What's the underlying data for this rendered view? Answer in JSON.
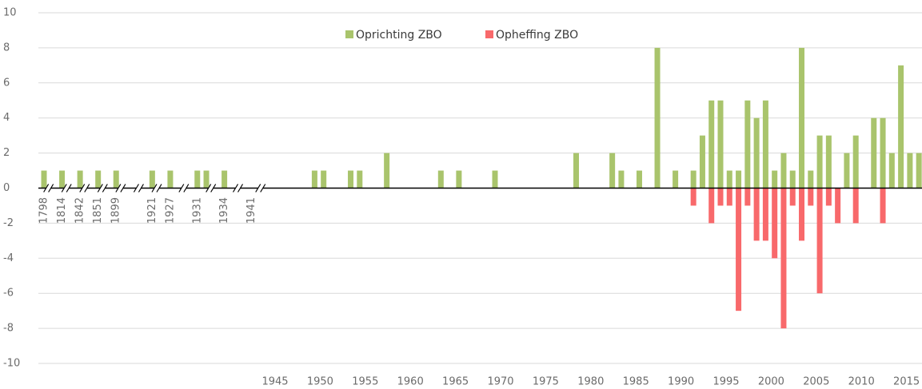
{
  "chart_data": {
    "type": "bar",
    "categories": [
      "1798",
      null,
      "1814",
      null,
      "1842",
      null,
      "1851",
      null,
      "1899",
      null,
      null,
      null,
      "1921",
      null,
      "1927",
      null,
      null,
      "1931",
      null,
      null,
      "1934",
      null,
      null,
      "1941",
      null,
      "1945",
      null,
      null,
      null,
      null,
      "1950",
      null,
      null,
      null,
      null,
      "1955",
      null,
      null,
      null,
      null,
      "1960",
      null,
      null,
      null,
      null,
      "1965",
      null,
      null,
      null,
      null,
      "1970",
      null,
      null,
      null,
      null,
      "1975",
      null,
      null,
      null,
      null,
      "1980",
      null,
      null,
      null,
      null,
      "1985",
      null,
      null,
      null,
      null,
      "1990",
      null,
      null,
      null,
      null,
      "1995",
      null,
      null,
      null,
      null,
      "2000",
      null,
      null,
      null,
      null,
      "2005",
      null,
      null,
      null,
      null,
      "2010",
      null,
      null,
      null,
      null,
      "2015",
      null,
      null
    ],
    "series": [
      {
        "name": "Oprichting ZBO",
        "color": "#a9c46c",
        "values": [
          1,
          null,
          1,
          null,
          1,
          null,
          1,
          null,
          1,
          null,
          null,
          null,
          1,
          null,
          1,
          null,
          null,
          1,
          1,
          null,
          1,
          null,
          null,
          null,
          null,
          null,
          null,
          null,
          null,
          null,
          1,
          1,
          null,
          null,
          1,
          1,
          null,
          null,
          2,
          null,
          null,
          null,
          null,
          null,
          1,
          null,
          1,
          null,
          null,
          null,
          1,
          null,
          null,
          null,
          null,
          null,
          null,
          null,
          null,
          2,
          null,
          null,
          null,
          2,
          1,
          null,
          1,
          null,
          8,
          null,
          1,
          null,
          1,
          3,
          5,
          5,
          1,
          1,
          5,
          4,
          5,
          1,
          2,
          1,
          8,
          1,
          3,
          3,
          null,
          2,
          3,
          null,
          4,
          4,
          2,
          7,
          2,
          2
        ]
      },
      {
        "name": "Opheffing ZBO",
        "color": "#f8696b",
        "values": [
          null,
          null,
          null,
          null,
          null,
          null,
          null,
          null,
          null,
          null,
          null,
          null,
          null,
          null,
          null,
          null,
          null,
          null,
          null,
          null,
          null,
          null,
          null,
          null,
          null,
          null,
          null,
          null,
          null,
          null,
          null,
          null,
          null,
          null,
          null,
          null,
          null,
          null,
          null,
          null,
          null,
          null,
          null,
          null,
          null,
          null,
          null,
          null,
          null,
          null,
          null,
          null,
          null,
          null,
          null,
          null,
          null,
          null,
          null,
          null,
          null,
          null,
          null,
          null,
          null,
          null,
          null,
          null,
          null,
          null,
          null,
          null,
          -1,
          null,
          -2,
          -1,
          -1,
          -7,
          -1,
          -3,
          -3,
          -4,
          -8,
          -1,
          -3,
          -1,
          -6,
          -1,
          -2,
          null,
          -2,
          null,
          null,
          -2,
          null,
          null,
          null,
          null
        ]
      }
    ],
    "ylim": [
      -10,
      10
    ],
    "yticks": [
      -10,
      -8,
      -6,
      -4,
      -2,
      0,
      2,
      4,
      6,
      8,
      10
    ],
    "grid": true,
    "legend": "top"
  }
}
